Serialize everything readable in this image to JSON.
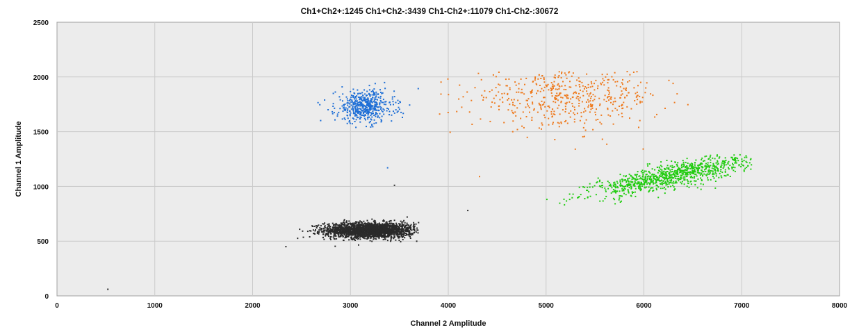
{
  "chart_data": {
    "type": "scatter",
    "title": "Ch1+Ch2+:1245  Ch1+Ch2-:3439  Ch1-Ch2+:11079  Ch1-Ch2-:30672",
    "xlabel": "Channel 2 Amplitude",
    "ylabel": "Channel 1 Amplitude",
    "xlim": [
      0,
      8000
    ],
    "ylim": [
      0,
      2500
    ],
    "xticks": [
      0,
      1000,
      2000,
      3000,
      4000,
      5000,
      6000,
      7000,
      8000
    ],
    "yticks": [
      0,
      500,
      1000,
      1500,
      2000,
      2500
    ],
    "grid": true,
    "legend": "none",
    "series": [
      {
        "color": "#2a2a2a",
        "count": 30672,
        "center": [
          3200,
          600
        ],
        "spread": [
          230,
          35
        ],
        "x_range": [
          2300,
          3700
        ],
        "y_range": [
          450,
          800
        ]
      },
      {
        "color": "#1f6fd6",
        "count": 3439,
        "center": [
          3150,
          1730
        ],
        "spread": [
          150,
          75
        ],
        "x_range": [
          2600,
          3700
        ],
        "y_range": [
          1170,
          1950
        ]
      },
      {
        "color": "#ee7a1e",
        "count": 1245,
        "center": [
          5200,
          1820
        ],
        "spread": [
          480,
          140
        ],
        "x_range": [
          3800,
          7000
        ],
        "y_range": [
          1100,
          2050
        ]
      },
      {
        "color": "#22cc11",
        "count": 11079,
        "center": [
          6300,
          1100
        ],
        "spread": [
          420,
          55
        ],
        "x_range": [
          4500,
          7100
        ],
        "y_range": [
          830,
          1290
        ],
        "slope": 0.18
      }
    ],
    "outliers": [
      {
        "x": 520,
        "y": 60,
        "color": "#2a2a2a"
      },
      {
        "x": 3450,
        "y": 1010,
        "color": "#2a2a2a"
      },
      {
        "x": 2340,
        "y": 450,
        "color": "#2a2a2a"
      },
      {
        "x": 4200,
        "y": 780,
        "color": "#2a2a2a"
      },
      {
        "x": 3380,
        "y": 1170,
        "color": "#1f6fd6"
      },
      {
        "x": 4320,
        "y": 1090,
        "color": "#ee7a1e"
      }
    ]
  }
}
